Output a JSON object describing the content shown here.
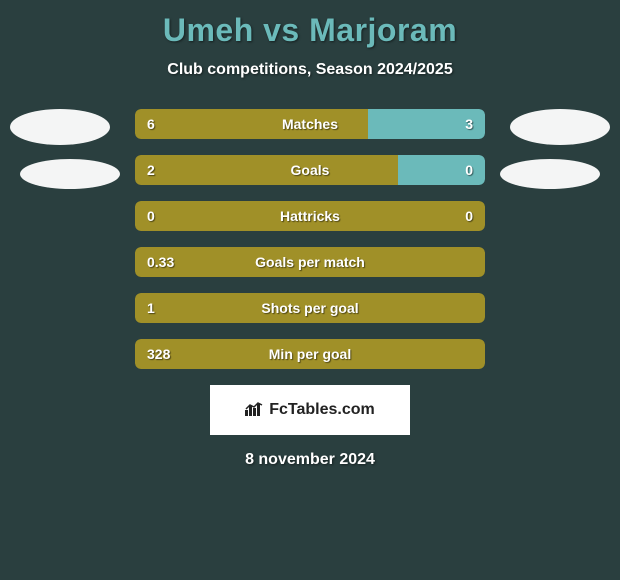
{
  "title": "Umeh vs Marjoram",
  "subtitle": "Club competitions, Season 2024/2025",
  "footer_date": "8 november 2024",
  "logo_text": "FcTables.com",
  "colors": {
    "background": "#2a3f3f",
    "title_color": "#6bbaba",
    "bar_olive": "#a09028",
    "bar_teal": "#6bbaba",
    "avatar_bg": "#ffffff"
  },
  "stats": [
    {
      "label": "Matches",
      "left_value": "6",
      "right_value": "3",
      "left_pct": 66.7,
      "right_pct": 33.3,
      "left_color": "#a09028",
      "right_color": "#6bbaba"
    },
    {
      "label": "Goals",
      "left_value": "2",
      "right_value": "0",
      "left_pct": 75,
      "right_pct": 25,
      "left_color": "#a09028",
      "right_color": "#6bbaba"
    },
    {
      "label": "Hattricks",
      "left_value": "0",
      "right_value": "0",
      "left_pct": 100,
      "right_pct": 0,
      "left_color": "#a09028",
      "right_color": "#6bbaba"
    },
    {
      "label": "Goals per match",
      "left_value": "0.33",
      "right_value": "",
      "left_pct": 100,
      "right_pct": 0,
      "left_color": "#a09028",
      "right_color": "#6bbaba"
    },
    {
      "label": "Shots per goal",
      "left_value": "1",
      "right_value": "",
      "left_pct": 100,
      "right_pct": 0,
      "left_color": "#a09028",
      "right_color": "#6bbaba"
    },
    {
      "label": "Min per goal",
      "left_value": "328",
      "right_value": "",
      "left_pct": 100,
      "right_pct": 0,
      "left_color": "#a09028",
      "right_color": "#6bbaba"
    }
  ]
}
